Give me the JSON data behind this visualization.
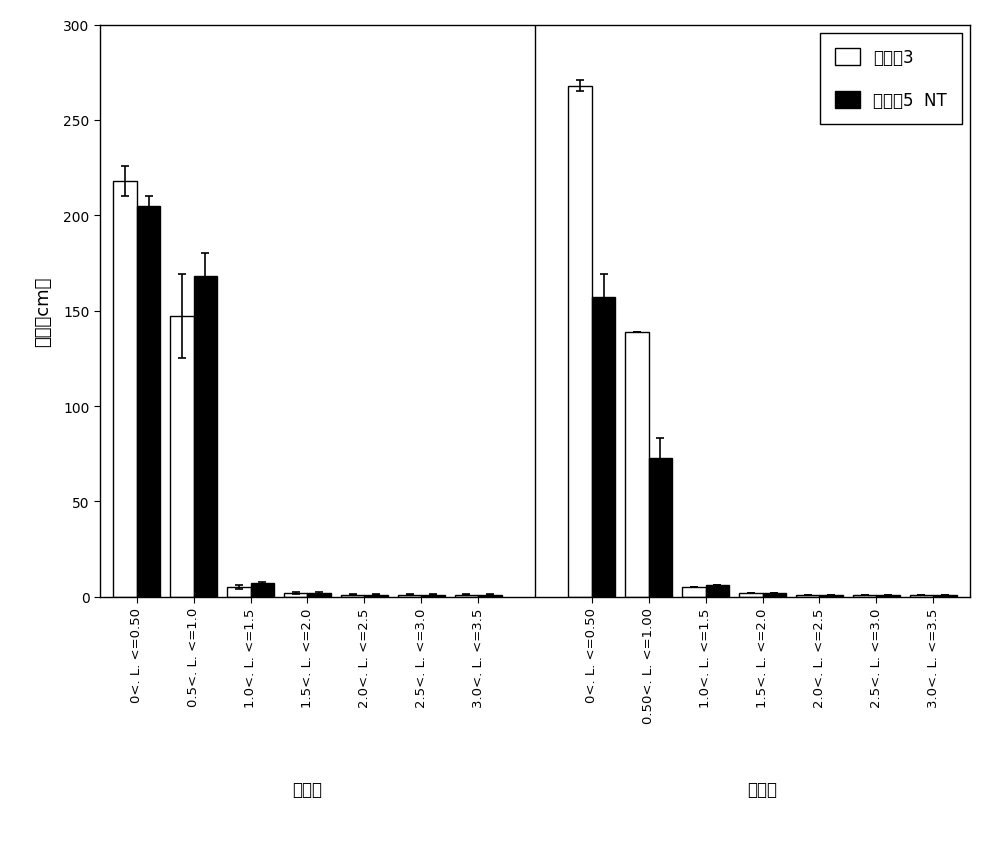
{
  "categories_control": [
    "0<. L. <=0.50",
    "0.5<. L. <=1.0",
    "1.0<. L. <=1.5",
    "1.5<. L. <=2.0",
    "2.0<. L. <=2.5",
    "2.5<. L. <=3.0",
    "3.0<. L. <=3.5"
  ],
  "categories_treatment": [
    "0<. L. <=0.50",
    "0.50<. L. <=1.00",
    "1.0<. L. <=1.5",
    "1.5<. L. <=2.0",
    "2.0<. L. <=2.5",
    "2.5<. L. <=3.0",
    "3.0<. L. <=3.5"
  ],
  "white_control": [
    218,
    147,
    5,
    2,
    1,
    1,
    1
  ],
  "black_control": [
    205,
    168,
    7,
    2,
    1,
    1,
    1
  ],
  "white_treatment": [
    268,
    139,
    5,
    2,
    1,
    1,
    1
  ],
  "black_treatment": [
    157,
    73,
    6,
    2,
    1,
    1,
    1
  ],
  "white_control_err": [
    8,
    22,
    1,
    0.5,
    0.3,
    0.3,
    0.3
  ],
  "black_control_err": [
    5,
    12,
    1,
    0.5,
    0.3,
    0.3,
    0.3
  ],
  "white_treatment_err": [
    3,
    0,
    0,
    0,
    0,
    0,
    0
  ],
  "black_treatment_err": [
    12,
    10,
    0,
    0,
    0,
    0,
    0
  ],
  "ylabel": "根长（cm）",
  "legend_white": "转基因3",
  "legend_black": "转基因5  NT",
  "ylim": [
    0,
    300
  ],
  "yticks": [
    0,
    50,
    100,
    150,
    200,
    250,
    300
  ],
  "group_label_control": "对照组",
  "group_label_treatment": "处理组",
  "background_color": "#ffffff",
  "bar_width": 0.35,
  "bar_color_white": "#ffffff",
  "bar_color_black": "#000000",
  "bar_edgecolor": "#000000"
}
